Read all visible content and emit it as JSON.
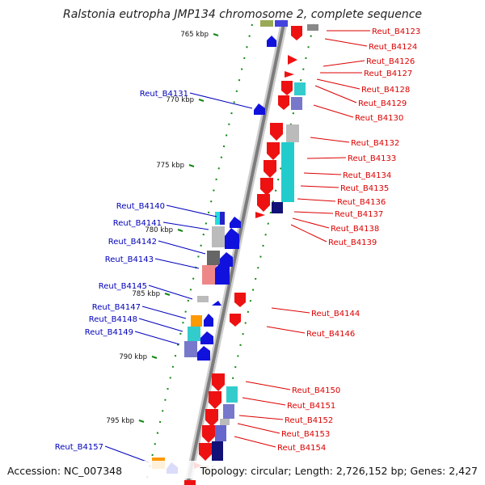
{
  "title": "Ralstonia eutropha JMP134 chromosome 2, complete sequence",
  "footer": {
    "accession": "Accession: NC_007348",
    "topology": "Topology: circular; Length: 2,726,152 bp; Genes: 2,427"
  },
  "colors": {
    "backbone": "#8a8a8a",
    "forward_label": "#dd0000",
    "reverse_label": "#0000bb",
    "forward_gene": "#ee1111",
    "reverse_gene": "#1111dd",
    "tick": "#118811"
  },
  "ticks": [
    {
      "label": "765 kbp"
    },
    {
      "label": "770 kbp"
    },
    {
      "label": "775 kbp"
    },
    {
      "label": "780 kbp"
    },
    {
      "label": "785 kbp"
    },
    {
      "label": "790 kbp"
    },
    {
      "label": "795 kbp"
    }
  ],
  "right_labels": [
    "Reut_B4123",
    "Reut_B4124",
    "Reut_B4126",
    "Reut_B4127",
    "Reut_B4128",
    "Reut_B4129",
    "Reut_B4130",
    "Reut_B4132",
    "Reut_B4133",
    "Reut_B4134",
    "Reut_B4135",
    "Reut_B4136",
    "Reut_B4137",
    "Reut_B4138",
    "Reut_B4139",
    "Reut_B4144",
    "Reut_B4146",
    "Reut_B4150",
    "Reut_B4151",
    "Reut_B4152",
    "Reut_B4153",
    "Reut_B4154"
  ],
  "left_labels": [
    "Reut_B4131",
    "Reut_B4140",
    "Reut_B4141",
    "Reut_B4142",
    "Reut_B4143",
    "Reut_B4145",
    "Reut_B4147",
    "Reut_B4148",
    "Reut_B4149",
    "Reut_B4157"
  ]
}
